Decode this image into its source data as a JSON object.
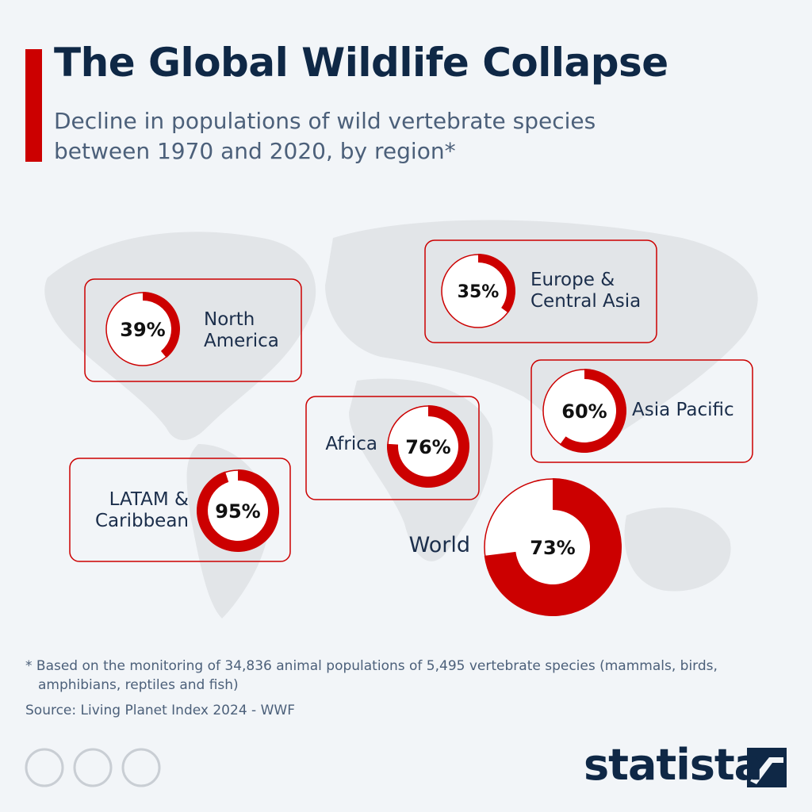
{
  "title": "The Global Wildlife Collapse",
  "subtitle": "Decline in populations of wild vertebrate species between 1970 and 2020, by region*",
  "footnote": "* Based on the monitoring of 34,836 animal populations of 5,495 vertebrate species (mammals, birds, amphibians, reptiles and fish)",
  "source": "Source: Living Planet Index 2024 - WWF",
  "brand": "statista",
  "chart_data": [
    {
      "type": "donut",
      "title": "North America",
      "values": [
        39
      ],
      "value_labels": [
        "39%"
      ],
      "color": "#cc0000"
    },
    {
      "type": "donut",
      "title": "Europe & Central Asia",
      "values": [
        35
      ],
      "value_labels": [
        "35%"
      ],
      "color": "#cc0000"
    },
    {
      "type": "donut",
      "title": "Asia Pacific",
      "values": [
        60
      ],
      "value_labels": [
        "60%"
      ],
      "color": "#cc0000"
    },
    {
      "type": "donut",
      "title": "Africa",
      "values": [
        76
      ],
      "value_labels": [
        "76%"
      ],
      "color": "#cc0000"
    },
    {
      "type": "donut",
      "title": "LATAM & Caribbean",
      "values": [
        95
      ],
      "value_labels": [
        "95%"
      ],
      "color": "#cc0000"
    },
    {
      "type": "donut",
      "title": "World",
      "values": [
        73
      ],
      "value_labels": [
        "73%"
      ],
      "color": "#cc0000"
    }
  ]
}
